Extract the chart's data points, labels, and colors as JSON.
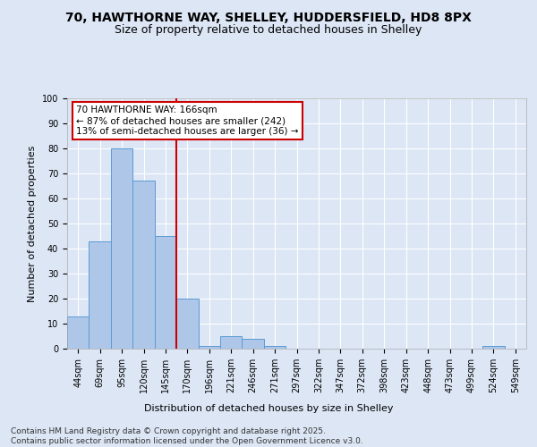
{
  "title_line1": "70, HAWTHORNE WAY, SHELLEY, HUDDERSFIELD, HD8 8PX",
  "title_line2": "Size of property relative to detached houses in Shelley",
  "xlabel": "Distribution of detached houses by size in Shelley",
  "ylabel": "Number of detached properties",
  "categories": [
    "44sqm",
    "69sqm",
    "95sqm",
    "120sqm",
    "145sqm",
    "170sqm",
    "196sqm",
    "221sqm",
    "246sqm",
    "271sqm",
    "297sqm",
    "322sqm",
    "347sqm",
    "372sqm",
    "398sqm",
    "423sqm",
    "448sqm",
    "473sqm",
    "499sqm",
    "524sqm",
    "549sqm"
  ],
  "values": [
    13,
    43,
    80,
    67,
    45,
    20,
    1,
    5,
    4,
    1,
    0,
    0,
    0,
    0,
    0,
    0,
    0,
    0,
    0,
    1,
    0
  ],
  "bar_color": "#aec6e8",
  "bar_edge_color": "#5b9bd5",
  "redline_color": "#cc0000",
  "annotation_text": "70 HAWTHORNE WAY: 166sqm\n← 87% of detached houses are smaller (242)\n13% of semi-detached houses are larger (36) →",
  "annotation_box_edge": "#cc0000",
  "ylim": [
    0,
    100
  ],
  "yticks": [
    0,
    10,
    20,
    30,
    40,
    50,
    60,
    70,
    80,
    90,
    100
  ],
  "background_color": "#dce6f5",
  "plot_bg_color": "#dce6f5",
  "grid_color": "#ffffff",
  "footer_text": "Contains HM Land Registry data © Crown copyright and database right 2025.\nContains public sector information licensed under the Open Government Licence v3.0.",
  "title_fontsize": 10,
  "subtitle_fontsize": 9,
  "axis_label_fontsize": 8,
  "tick_fontsize": 7,
  "annotation_fontsize": 7.5,
  "footer_fontsize": 6.5
}
